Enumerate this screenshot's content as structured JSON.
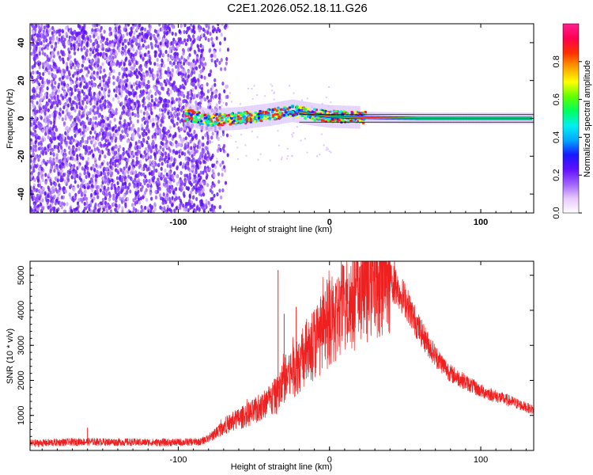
{
  "title": "C2E1.2026.052.18.11.G26",
  "chart_data": [
    {
      "type": "heatmap",
      "xlabel": "Height of straight line (km)",
      "ylabel": "Frequency (Hz)",
      "xlim": [
        -198,
        135
      ],
      "ylim": [
        -50,
        50
      ],
      "xticks": [
        -100,
        0,
        100
      ],
      "yticks": [
        -40,
        -20,
        0,
        20,
        40
      ],
      "colorbar": {
        "label": "Normalized spectral amplitude",
        "range": [
          0,
          1
        ],
        "ticks": [
          0.0,
          0.2,
          0.4,
          0.6,
          0.8
        ],
        "colors": [
          "#ffffff",
          "#e8c8ff",
          "#a060ff",
          "#6010ff",
          "#1818ff",
          "#00a8ff",
          "#00f0f0",
          "#00ff60",
          "#60ff00",
          "#ffff00",
          "#ffa000",
          "#ff3000",
          "#ff0050",
          "#ff2090"
        ]
      },
      "noise_region": {
        "x_start": -198,
        "x_end": -75,
        "color": "#7020ff"
      },
      "signal_trace": [
        {
          "x": -95,
          "y": 2
        },
        {
          "x": -80,
          "y": -1
        },
        {
          "x": -60,
          "y": 0
        },
        {
          "x": -40,
          "y": 2
        },
        {
          "x": -25,
          "y": 4
        },
        {
          "x": -10,
          "y": 2
        },
        {
          "x": 0,
          "y": 1
        },
        {
          "x": 20,
          "y": 0.5
        },
        {
          "x": 60,
          "y": 0
        },
        {
          "x": 135,
          "y": 0
        }
      ]
    },
    {
      "type": "line",
      "xlabel": "Height of straight line (km)",
      "ylabel": "SNR (10 * v/v)",
      "xlim": [
        -198,
        135
      ],
      "ylim": [
        0,
        5400
      ],
      "xticks": [
        -100,
        0,
        100
      ],
      "yticks": [
        1000,
        2000,
        3000,
        4000,
        5000
      ],
      "color": "#ee2020",
      "series": [
        {
          "x": [
            -198,
            -180,
            -160,
            -140,
            -120,
            -100,
            -85,
            -78,
            -70,
            -60,
            -50,
            -40,
            -34,
            -30,
            -20,
            -10,
            0,
            10,
            20,
            30,
            36,
            40,
            50,
            60,
            70,
            80,
            100,
            120,
            135
          ],
          "y": [
            200,
            230,
            250,
            240,
            230,
            230,
            250,
            400,
            700,
            900,
            1100,
            1400,
            1600,
            2000,
            2500,
            3100,
            3600,
            4100,
            4500,
            4900,
            5050,
            4900,
            4300,
            3400,
            2700,
            2200,
            1700,
            1400,
            1150
          ]
        }
      ],
      "spikes": [
        {
          "x": -160,
          "y": 650
        },
        {
          "x": -34,
          "y": 5150
        },
        {
          "x": -30,
          "y": 3900
        },
        {
          "x": -22,
          "y": 4100
        },
        {
          "x": 4,
          "y": 4700
        },
        {
          "x": 12,
          "y": 4900
        },
        {
          "x": 27,
          "y": 5200
        },
        {
          "x": 38,
          "y": 5300
        }
      ]
    }
  ]
}
